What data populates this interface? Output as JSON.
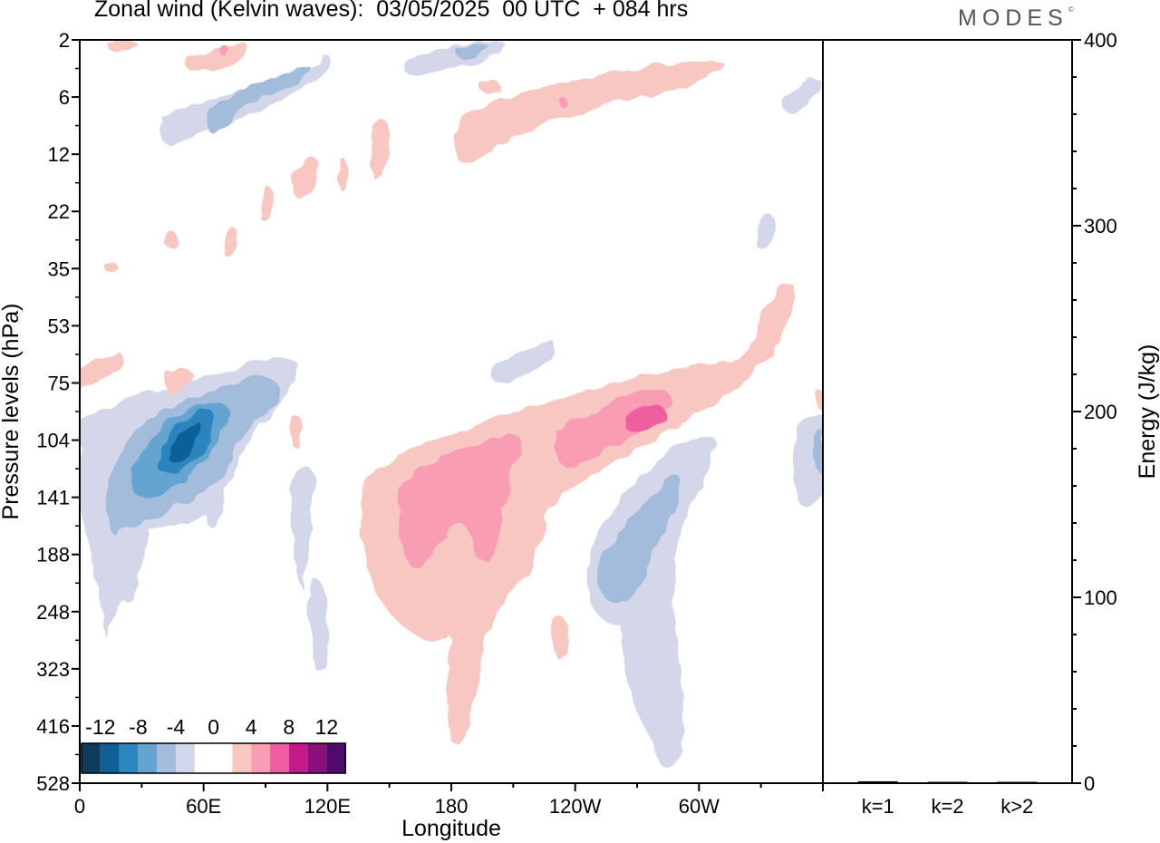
{
  "header": {
    "title": "Zonal wind (Kelvin waves):  03/05/2025  00 UTC  + 084 hrs",
    "brand": "MODES",
    "brand_mark": "©"
  },
  "chart_data": [
    {
      "type": "heatmap",
      "title": "Zonal wind (Kelvin waves):  03/05/2025  00 UTC  + 084 hrs",
      "xlabel": "Longitude",
      "ylabel": "Pressure levels (hPa)",
      "x_ticks": [
        "0",
        "60E",
        "120E",
        "180",
        "120W",
        "60W"
      ],
      "x_tick_degrees": [
        0,
        60,
        120,
        180,
        240,
        300
      ],
      "xlim": [
        0,
        360
      ],
      "y_ticks": [
        "2",
        "6",
        "12",
        "22",
        "35",
        "53",
        "75",
        "104",
        "141",
        "188",
        "248",
        "323",
        "416",
        "528"
      ],
      "y_scale": "model levels, pressure increasing downward",
      "colorbar": {
        "labels": [
          "-12",
          "-8",
          "-4",
          "0",
          "4",
          "8",
          "12"
        ],
        "colors": [
          "#0f3c5c",
          "#0f6096",
          "#2b85bf",
          "#64a4d0",
          "#a4bcdc",
          "#d3d7e9",
          "#ffffff",
          "#ffffff",
          "#f9c7c2",
          "#f89db4",
          "#ef5ea0",
          "#c4198a",
          "#8b0f7a",
          "#4f0a6e"
        ],
        "placement": "bottom-left"
      },
      "features": [
        {
          "sign": "negative",
          "peak": -10,
          "lon": 42,
          "level": "104"
        },
        {
          "sign": "negative",
          "peak": -4,
          "lon": 275,
          "level": "188"
        },
        {
          "sign": "positive",
          "peak": 7,
          "lon": 168,
          "level": "141"
        },
        {
          "sign": "positive",
          "peak": 8,
          "lon": 275,
          "level": "89"
        }
      ]
    },
    {
      "type": "bar",
      "ylabel": "Energy (J/kg)",
      "categories": [
        "k=1",
        "k=2",
        "k>2"
      ],
      "values": [
        1,
        0.2,
        0.3
      ],
      "ylim": [
        0,
        400
      ],
      "y_ticks": [
        "0",
        "100",
        "200",
        "300",
        "400"
      ]
    }
  ]
}
